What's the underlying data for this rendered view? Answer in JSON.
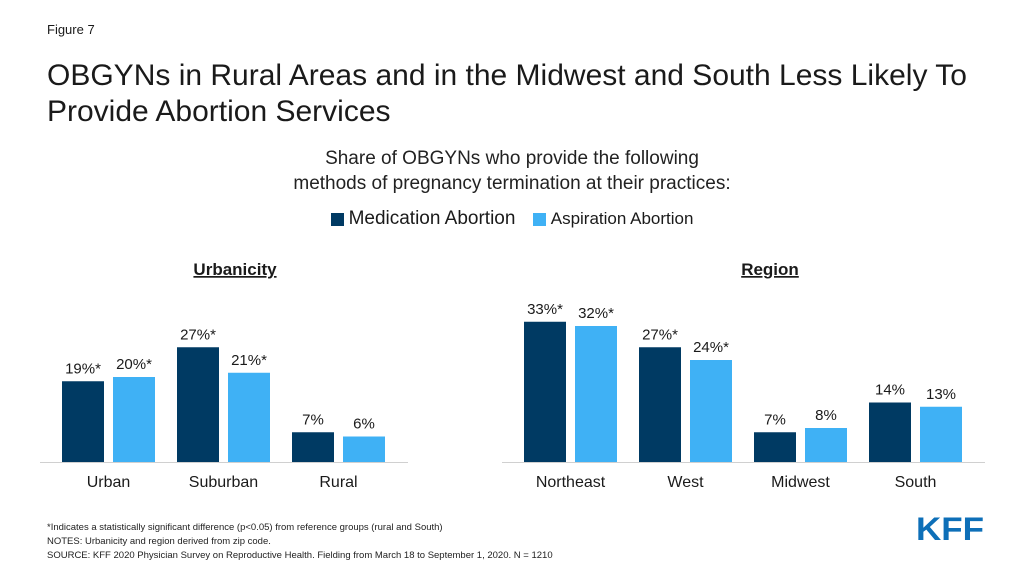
{
  "figure_label": "Figure 7",
  "title": "OBGYNs in Rural Areas and in the Midwest and South Less Likely To Provide Abortion Services",
  "subtitle": [
    "Share of OBGYNs who provide the following",
    "methods of pregnancy termination at their practices:"
  ],
  "colors": {
    "medication": "#003a63",
    "aspiration": "#3fb1f5"
  },
  "chart_data": [
    {
      "type": "bar",
      "title": "Urbanicity",
      "categories": [
        "Urban",
        "Suburban",
        "Rural"
      ],
      "series": [
        {
          "name": "Medication Abortion",
          "values": [
            19,
            27,
            7
          ],
          "labels": [
            "19%*",
            "27%*",
            "7%"
          ]
        },
        {
          "name": "Aspiration Abortion",
          "values": [
            20,
            21,
            6
          ],
          "labels": [
            "20%*",
            "21%*",
            "6%"
          ]
        }
      ],
      "ylim": [
        0,
        35
      ],
      "grid": false,
      "legend": "top-center"
    },
    {
      "type": "bar",
      "title": "Region",
      "categories": [
        "Northeast",
        "West",
        "Midwest",
        "South"
      ],
      "series": [
        {
          "name": "Medication Abortion",
          "values": [
            33,
            27,
            7,
            14
          ],
          "labels": [
            "33%*",
            "27%*",
            "7%",
            "14%"
          ]
        },
        {
          "name": "Aspiration Abortion",
          "values": [
            32,
            24,
            8,
            13
          ],
          "labels": [
            "32%*",
            "24%*",
            "8%",
            "13%"
          ]
        }
      ],
      "ylim": [
        0,
        35
      ],
      "grid": false,
      "legend": "top-center"
    }
  ],
  "notes": [
    "*Indicates a statistically significant difference (p<0.05) from reference groups (rural and South)",
    "NOTES: Urbanicity and region derived from zip code.",
    "SOURCE: KFF 2020 Physician Survey on Reproductive Health. Fielding from March 18 to September 1, 2020. N = 1210"
  ],
  "logo_text": "KFF"
}
